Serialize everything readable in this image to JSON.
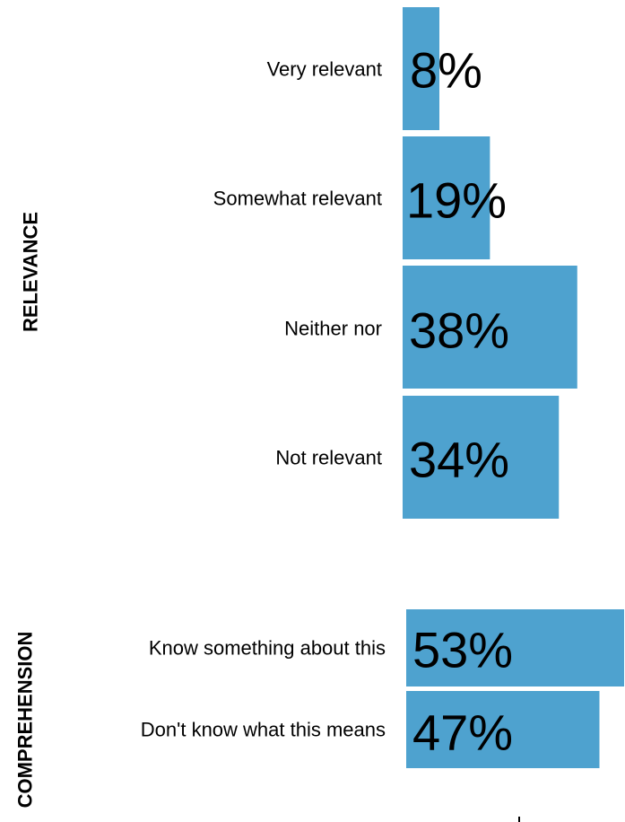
{
  "chart_data": [
    {
      "type": "bar",
      "orientation": "horizontal",
      "group_label": "RELEVANCE",
      "categories": [
        "Very relevant",
        "Somewhat relevant",
        "Neither nor",
        "Not relevant"
      ],
      "values": [
        8,
        19,
        38,
        34
      ],
      "value_labels": [
        "8%",
        "19%",
        "38%",
        "34%"
      ],
      "unit": "%",
      "xlim": [
        0,
        40
      ],
      "color": "#4ea2cf"
    },
    {
      "type": "bar",
      "orientation": "horizontal",
      "group_label": "COMPREHENSION",
      "categories": [
        "Know something about this",
        "Don't know what this means"
      ],
      "values": [
        53,
        47
      ],
      "value_labels": [
        "53%",
        "47%"
      ],
      "unit": "%",
      "xlim": [
        0,
        53
      ],
      "color": "#4ea2cf"
    }
  ]
}
